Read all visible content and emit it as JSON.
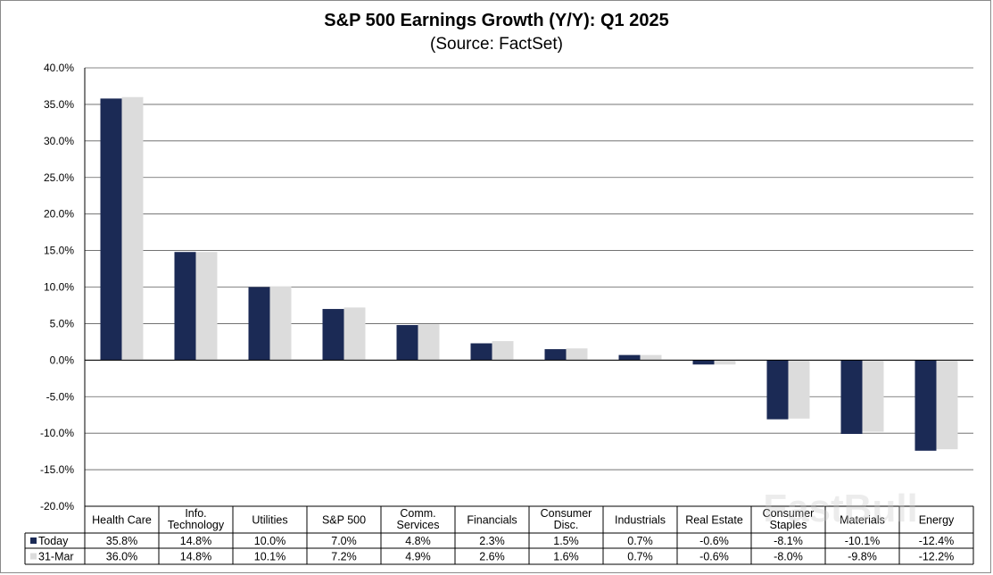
{
  "title": "S&P 500 Earnings Growth (Y/Y): Q1 2025",
  "subtitle": "(Source: FactSet)",
  "watermark": "FastBull",
  "colors": {
    "today": "#1b2a55",
    "march": "#dcdcdc",
    "grid": "#5f5f5f",
    "axis": "#000000"
  },
  "chart_data": {
    "type": "bar",
    "title": "S&P 500 Earnings Growth (Y/Y): Q1 2025",
    "subtitle": "(Source: FactSet)",
    "categories": [
      [
        "Health Care"
      ],
      [
        "Info.",
        "Technology"
      ],
      [
        "Utilities"
      ],
      [
        "S&P 500"
      ],
      [
        "Comm.",
        "Services"
      ],
      [
        "Financials"
      ],
      [
        "Consumer",
        "Disc."
      ],
      [
        "Industrials"
      ],
      [
        "Real Estate"
      ],
      [
        "Consumer",
        "Staples"
      ],
      [
        "Materials"
      ],
      [
        "Energy"
      ]
    ],
    "series": [
      {
        "name": "Today",
        "values": [
          35.8,
          14.8,
          10.0,
          7.0,
          4.8,
          2.3,
          1.5,
          0.7,
          -0.6,
          -8.1,
          -10.1,
          -12.4
        ],
        "labels": [
          "35.8%",
          "14.8%",
          "10.0%",
          "7.0%",
          "4.8%",
          "2.3%",
          "1.5%",
          "0.7%",
          "-0.6%",
          "-8.1%",
          "-10.1%",
          "-12.4%"
        ]
      },
      {
        "name": "31-Mar",
        "values": [
          36.0,
          14.8,
          10.1,
          7.2,
          4.9,
          2.6,
          1.6,
          0.7,
          -0.6,
          -8.0,
          -9.8,
          -12.2
        ],
        "labels": [
          "36.0%",
          "14.8%",
          "10.1%",
          "7.2%",
          "4.9%",
          "2.6%",
          "1.6%",
          "0.7%",
          "-0.6%",
          "-8.0%",
          "-9.8%",
          "-12.2%"
        ]
      }
    ],
    "ylim": [
      -20,
      40
    ],
    "yticks": [
      40,
      35,
      30,
      25,
      20,
      15,
      10,
      5,
      0,
      -5,
      -10,
      -15,
      -20
    ],
    "ytick_labels": [
      "40.0%",
      "35.0%",
      "30.0%",
      "25.0%",
      "20.0%",
      "15.0%",
      "10.0%",
      "5.0%",
      "0.0%",
      "-5.0%",
      "-10.0%",
      "-15.0%",
      "-20.0%"
    ],
    "grid": true,
    "legend": "data-table-bottom"
  }
}
